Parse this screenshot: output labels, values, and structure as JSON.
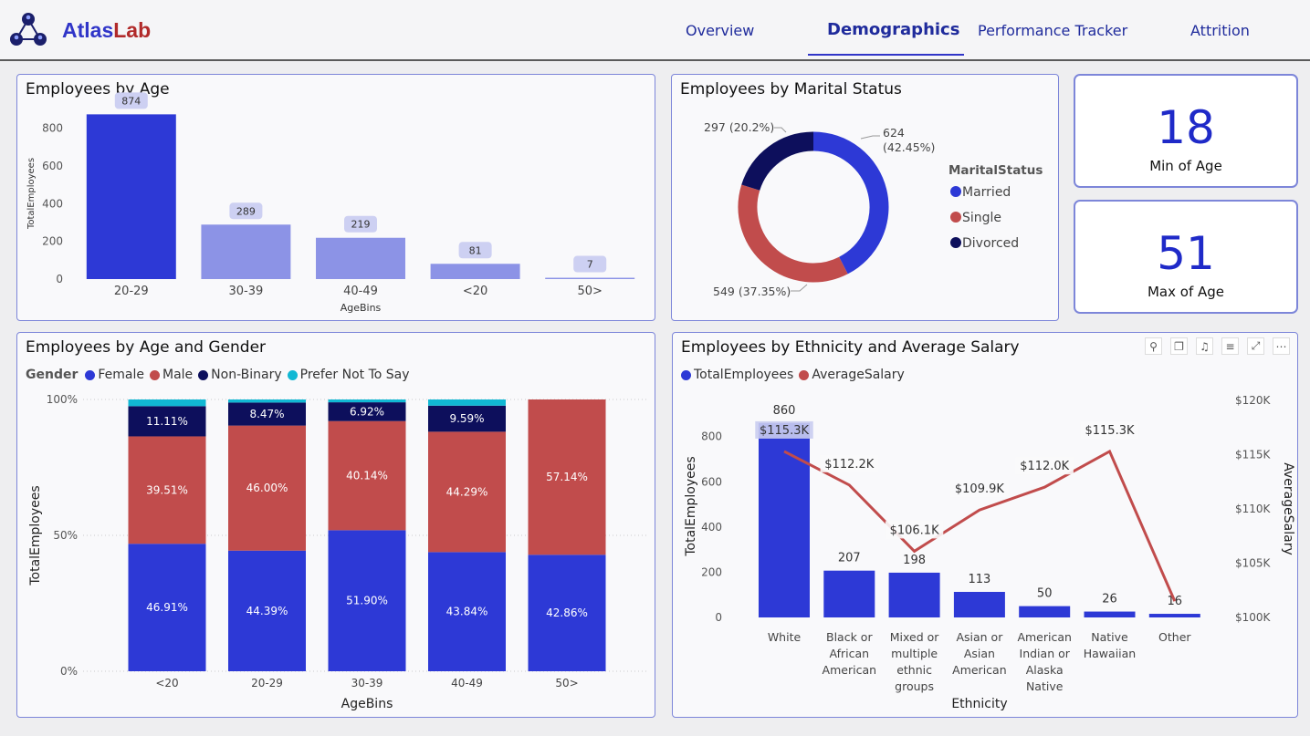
{
  "brand": {
    "part1": "Atlas",
    "part2": "Lab"
  },
  "nav": {
    "tabs": [
      "Overview",
      "Demographics",
      "Performance Tracker",
      "Attrition"
    ],
    "active": "Demographics"
  },
  "colors": {
    "female": "#2d39d6",
    "male": "#c14c4c",
    "nonbinary": "#0d0f5c",
    "prefer_not": "#11b8d4",
    "age_bar_primary": "#2d39d6",
    "age_bar_secondary": "#8c93e6"
  },
  "age_card": {
    "title": "Employees by Age",
    "chart_data": {
      "type": "bar",
      "categories": [
        "20-29",
        "30-39",
        "40-49",
        "<20",
        "50>"
      ],
      "values": [
        874,
        289,
        219,
        81,
        7
      ],
      "title": "Employees by Age",
      "xlabel": "AgeBins",
      "ylabel": "TotalEmployees",
      "ylim": [
        0,
        900
      ],
      "yticks": [
        "800",
        "600",
        "400",
        "200",
        "0"
      ],
      "data_labels": [
        "874",
        "289",
        "219",
        "81",
        "7"
      ]
    }
  },
  "marital_card": {
    "title": "Employees by Marital Status",
    "legend_title": "MaritalStatus",
    "chart_data": {
      "type": "pie",
      "categories": [
        "Married",
        "Single",
        "Divorced"
      ],
      "values": [
        624,
        549,
        297
      ],
      "percents": [
        "42.45%",
        "37.35%",
        "20.2%"
      ],
      "data_labels": [
        "624 (42.45%)",
        "549 (37.35%)",
        "297 (20.2%)"
      ],
      "colors": [
        "#2d39d6",
        "#c14c4c",
        "#0d0f5c"
      ],
      "legend": "right"
    }
  },
  "kpi": {
    "min_age": {
      "value": "18",
      "label": "Min of Age"
    },
    "max_age": {
      "value": "51",
      "label": "Max of Age"
    }
  },
  "gender_card": {
    "title": "Employees by Age and Gender",
    "legend_title": "Gender",
    "chart_data": {
      "type": "bar",
      "stacked": "100%",
      "categories": [
        "<20",
        "20-29",
        "30-39",
        "40-49",
        "50>"
      ],
      "series": [
        {
          "name": "Female",
          "values": [
            46.91,
            44.39,
            51.9,
            43.84,
            42.86
          ]
        },
        {
          "name": "Male",
          "values": [
            39.51,
            46.0,
            40.14,
            44.29,
            57.14
          ]
        },
        {
          "name": "Non-Binary",
          "values": [
            11.11,
            8.47,
            6.92,
            9.59,
            0
          ]
        },
        {
          "name": "Prefer Not To Say",
          "values": [
            2.47,
            1.14,
            1.04,
            2.28,
            0
          ]
        }
      ],
      "labels": {
        "Female": [
          "46.91%",
          "44.39%",
          "51.90%",
          "43.84%",
          "42.86%"
        ],
        "Male": [
          "39.51%",
          "46.00%",
          "40.14%",
          "44.29%",
          "57.14%"
        ],
        "Non-Binary": [
          "11.11%",
          "8.47%",
          "6.92%",
          "9.59%",
          ""
        ]
      },
      "xlabel": "AgeBins",
      "ylabel": "TotalEmployees",
      "yticks": [
        "100%",
        "50%",
        "0%"
      ],
      "legend": "top-left"
    }
  },
  "ethnicity_card": {
    "title": "Employees by Ethnicity and Average Salary",
    "chart_data": {
      "type": "bar",
      "combo": "bar+line",
      "categories": [
        [
          "White"
        ],
        [
          "Black or",
          "African",
          "American"
        ],
        [
          "Mixed or",
          "multiple",
          "ethnic",
          "groups"
        ],
        [
          "Asian or",
          "Asian",
          "American"
        ],
        [
          "American",
          "Indian or",
          "Alaska",
          "Native"
        ],
        [
          "Native",
          "Hawaiian"
        ],
        [
          "Other"
        ]
      ],
      "series": [
        {
          "name": "TotalEmployees",
          "type": "bar",
          "values": [
            860,
            207,
            198,
            113,
            50,
            26,
            16
          ],
          "labels": [
            "860",
            "207",
            "198",
            "113",
            "50",
            "26",
            "16"
          ]
        },
        {
          "name": "AverageSalary",
          "type": "line",
          "values": [
            115.3,
            112.2,
            106.1,
            109.9,
            112.0,
            115.3,
            101.5
          ],
          "labels": [
            "$115.3K",
            "$112.2K",
            "$106.1K",
            "$109.9K",
            "$112.0K",
            "$115.3K",
            ""
          ]
        }
      ],
      "xlabel": "Ethnicity",
      "ylabel": "TotalEmployees",
      "y2label": "AverageSalary",
      "ylim": [
        0,
        1000
      ],
      "y2lim": [
        100,
        120
      ],
      "yticks": [
        "800",
        "600",
        "400",
        "200",
        "0"
      ],
      "y2ticks": [
        "$120K",
        "$115K",
        "$110K",
        "$105K",
        "$100K"
      ],
      "legend": "top-left"
    }
  }
}
